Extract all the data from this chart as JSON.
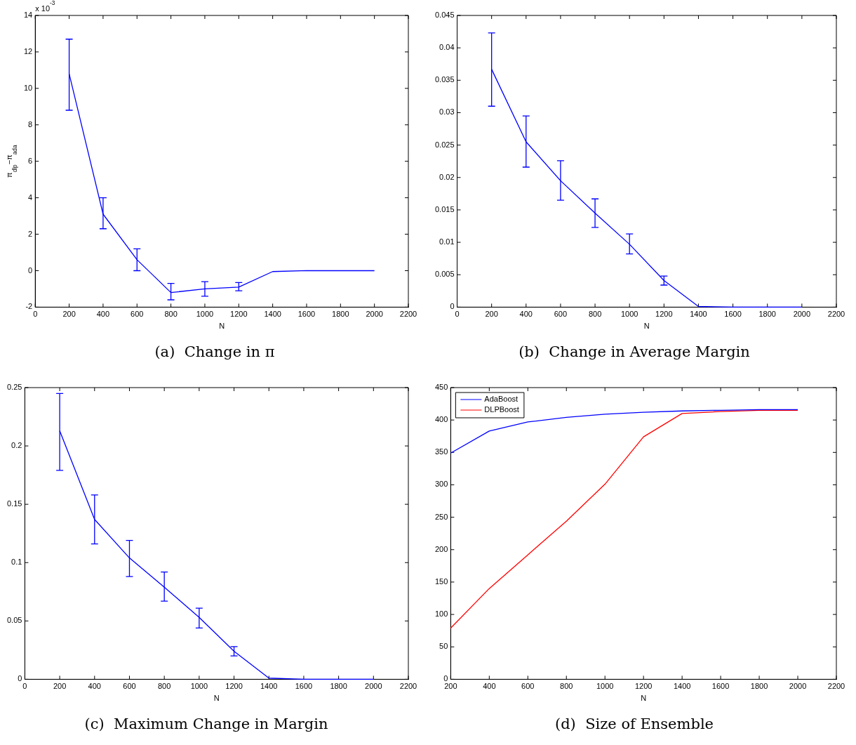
{
  "chart_data": [
    {
      "type": "line",
      "title": "(a)  Change in π",
      "xlabel": "N",
      "ylabel": "π$_{dlp}$−π$_{ada}$",
      "annotations": [
        "x 10$^{-3}$"
      ],
      "x": [
        200,
        400,
        600,
        800,
        1000,
        1200,
        1400,
        1600,
        1800,
        2000
      ],
      "series": [
        {
          "color": "#0000ff",
          "values": [
            10.8,
            3.1,
            0.6,
            -1.2,
            -1.0,
            -0.9,
            -0.05,
            0,
            0,
            0
          ],
          "errors": [
            [
              8.8,
              12.7
            ],
            [
              2.3,
              4.0
            ],
            [
              0.0,
              1.2
            ],
            [
              -1.6,
              -0.7
            ],
            [
              -1.4,
              -0.6
            ],
            [
              -1.1,
              -0.65
            ],
            null,
            null,
            null,
            null
          ]
        }
      ],
      "xlim": [
        0,
        2200
      ],
      "xticks": [
        0,
        200,
        400,
        600,
        800,
        1000,
        1200,
        1400,
        1600,
        1800,
        2000,
        2200
      ],
      "ylim": [
        -2,
        14
      ],
      "yticks": [
        -2,
        0,
        2,
        4,
        6,
        8,
        10,
        12,
        14
      ],
      "grid": false,
      "marker": "none"
    },
    {
      "type": "line",
      "title": "(b)  Change in Average Margin",
      "xlabel": "N",
      "x": [
        200,
        400,
        600,
        800,
        1000,
        1200,
        1400,
        1600,
        1800,
        2000
      ],
      "series": [
        {
          "color": "#0000ff",
          "values": [
            0.0367,
            0.0255,
            0.0195,
            0.0145,
            0.0097,
            0.0041,
            0.0001,
            0,
            0,
            0
          ],
          "errors": [
            [
              0.031,
              0.0423
            ],
            [
              0.0216,
              0.0295
            ],
            [
              0.0165,
              0.0226
            ],
            [
              0.0123,
              0.0167
            ],
            [
              0.0082,
              0.0113
            ],
            [
              0.0034,
              0.0048
            ],
            null,
            null,
            null,
            null
          ]
        }
      ],
      "xlim": [
        0,
        2200
      ],
      "xticks": [
        0,
        200,
        400,
        600,
        800,
        1000,
        1200,
        1400,
        1600,
        1800,
        2000,
        2200
      ],
      "ylim": [
        0,
        0.045
      ],
      "yticks": [
        0,
        0.005,
        0.01,
        0.015,
        0.02,
        0.025,
        0.03,
        0.035,
        0.04,
        0.045
      ],
      "grid": false,
      "marker": "none"
    },
    {
      "type": "line",
      "title": "(c)  Maximum Change in Margin",
      "xlabel": "N",
      "x": [
        200,
        400,
        600,
        800,
        1000,
        1200,
        1400,
        1600,
        1800,
        2000
      ],
      "series": [
        {
          "color": "#0000ff",
          "values": [
            0.213,
            0.137,
            0.104,
            0.079,
            0.053,
            0.024,
            0.001,
            0,
            0,
            0
          ],
          "errors": [
            [
              0.179,
              0.245
            ],
            [
              0.116,
              0.158
            ],
            [
              0.088,
              0.119
            ],
            [
              0.067,
              0.092
            ],
            [
              0.044,
              0.061
            ],
            [
              0.02,
              0.028
            ],
            null,
            null,
            null,
            null
          ]
        }
      ],
      "xlim": [
        0,
        2200
      ],
      "xticks": [
        0,
        200,
        400,
        600,
        800,
        1000,
        1200,
        1400,
        1600,
        1800,
        2000,
        2200
      ],
      "ylim": [
        0,
        0.25
      ],
      "yticks": [
        0,
        0.05,
        0.1,
        0.15,
        0.2,
        0.25
      ],
      "grid": false,
      "marker": "none"
    },
    {
      "type": "line",
      "title": "(d)  Size of Ensemble",
      "xlabel": "N",
      "x": [
        200,
        400,
        600,
        800,
        1000,
        1200,
        1400,
        1600,
        1800,
        2000
      ],
      "series": [
        {
          "name": "AdaBoost",
          "color": "#0000ff",
          "values": [
            349,
            383,
            397,
            404,
            409,
            412,
            414,
            415,
            416,
            416
          ]
        },
        {
          "name": "DLPBoost",
          "color": "#ff0000",
          "values": [
            79,
            140,
            192,
            244,
            301,
            374,
            410,
            413,
            415,
            415
          ]
        }
      ],
      "xlim": [
        200,
        2200
      ],
      "xticks": [
        200,
        400,
        600,
        800,
        1000,
        1200,
        1400,
        1600,
        1800,
        2000,
        2200
      ],
      "ylim": [
        0,
        450
      ],
      "yticks": [
        0,
        50,
        100,
        150,
        200,
        250,
        300,
        350,
        400,
        450
      ],
      "grid": false,
      "legend": "top left",
      "marker": "none"
    }
  ]
}
